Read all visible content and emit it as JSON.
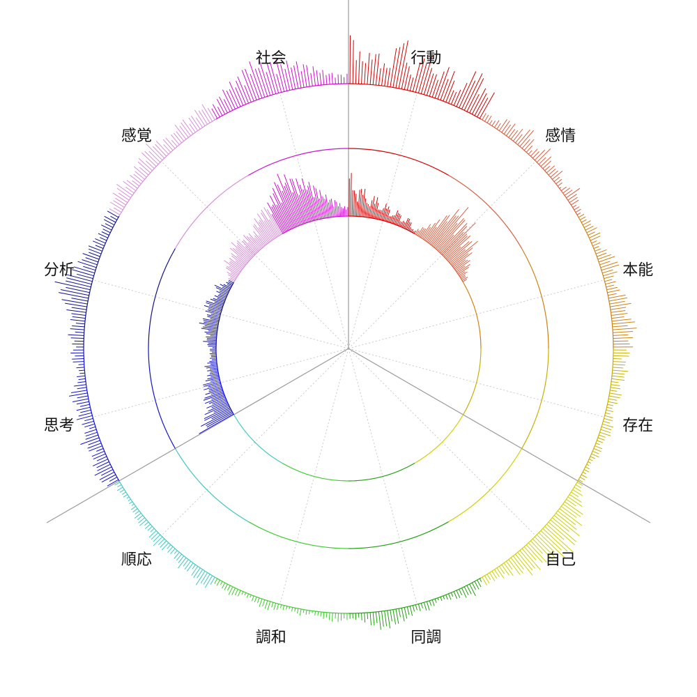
{
  "chart_data": {
    "type": "radial-bar",
    "title": "",
    "categories": [
      {
        "name": "行動",
        "color": "#d40000",
        "outer": [
          0.8,
          0.4,
          0.55,
          0.3,
          0.9,
          0.25,
          0.7,
          0.35,
          0.6,
          0.2,
          0.75,
          0.45
        ],
        "inner": [
          0.75,
          0.35,
          0.5,
          0.2,
          0.4,
          0.15,
          0.3,
          0.1,
          0.25,
          0.08,
          0.2,
          0.05
        ]
      },
      {
        "name": "感情",
        "color": "#d96040",
        "outer": [
          0.15,
          0.1,
          0.25,
          0.2,
          0.35,
          0.1,
          0.3,
          0.15,
          0.2,
          0.05,
          0.25,
          0.1
        ],
        "inner": [
          0.1,
          0.2,
          0.4,
          0.65,
          0.8,
          0.6,
          0.7,
          0.45,
          0.55,
          0.3,
          0.25,
          0.1
        ]
      },
      {
        "name": "本能",
        "color": "#d08010",
        "outer": [
          0.1,
          0.15,
          0.2,
          0.1,
          0.25,
          0.3,
          0.15,
          0.2,
          0.35,
          0.25,
          0.4,
          0.3
        ],
        "inner": [
          0,
          0,
          0,
          0,
          0,
          0,
          0,
          0,
          0,
          0,
          0,
          0
        ]
      },
      {
        "name": "存在",
        "color": "#c8b000",
        "outer": [
          0.3,
          0.2,
          0.25,
          0.15,
          0.2,
          0.1,
          0.15,
          0.2,
          0.1,
          0.15,
          0.05,
          0.1
        ],
        "inner": [
          0,
          0,
          0,
          0,
          0,
          0,
          0,
          0,
          0,
          0,
          0,
          0
        ]
      },
      {
        "name": "自己",
        "color": "#d0d000",
        "outer": [
          0.1,
          0.2,
          0.35,
          0.45,
          0.55,
          0.6,
          0.5,
          0.4,
          0.45,
          0.3,
          0.2,
          0.15
        ],
        "inner": [
          0,
          0,
          0,
          0,
          0,
          0,
          0,
          0,
          0,
          0,
          0,
          0
        ]
      },
      {
        "name": "同調",
        "color": "#22a010",
        "outer": [
          0.1,
          0.2,
          0.15,
          0.1,
          0.05,
          0.15,
          0.1,
          0.2,
          0.25,
          0.3,
          0.2,
          0.1
        ],
        "inner": [
          0,
          0,
          0,
          0,
          0,
          0,
          0,
          0,
          0,
          0,
          0,
          0
        ]
      },
      {
        "name": "調和",
        "color": "#3ccc2c",
        "outer": [
          0.1,
          0.15,
          0.1,
          0.05,
          0.1,
          0.05,
          0.1,
          0.15,
          0.1,
          0.05,
          0.15,
          0.1
        ],
        "inner": [
          0,
          0,
          0,
          0,
          0,
          0,
          0,
          0,
          0,
          0,
          0,
          0
        ]
      },
      {
        "name": "順応",
        "color": "#40c8c0",
        "outer": [
          0.2,
          0.25,
          0.15,
          0.2,
          0.1,
          0.15,
          0.2,
          0.1,
          0.15,
          0.1,
          0.05,
          0.1
        ],
        "inner": [
          0,
          0,
          0,
          0,
          0,
          0,
          0,
          0,
          0,
          0,
          0,
          0
        ]
      },
      {
        "name": "思考",
        "color": "#1010d0",
        "outer": [
          0.2,
          0.3,
          0.25,
          0.2,
          0.3,
          0.15,
          0.25,
          0.2,
          0.3,
          0.15,
          0.1,
          0.2
        ],
        "inner": [
          0.6,
          0.5,
          0.4,
          0.3,
          0.35,
          0.25,
          0.3,
          0.2,
          0.15,
          0.2,
          0.1,
          0.1
        ]
      },
      {
        "name": "分析",
        "color": "#101090",
        "outer": [
          0.15,
          0.25,
          0.2,
          0.3,
          0.45,
          0.55,
          0.4,
          0.3,
          0.25,
          0.2,
          0.15,
          0.2
        ],
        "inner": [
          0.1,
          0.2,
          0.15,
          0.25,
          0.3,
          0.2,
          0.25,
          0.3,
          0.2,
          0.15,
          0.25,
          0.1
        ]
      },
      {
        "name": "感覚",
        "color": "#d890d8",
        "outer": [
          0.2,
          0.25,
          0.3,
          0.2,
          0.25,
          0.3,
          0.35,
          0.25,
          0.2,
          0.3,
          0.25,
          0.3
        ],
        "inner": [
          0.1,
          0.2,
          0.3,
          0.25,
          0.35,
          0.4,
          0.3,
          0.35,
          0.25,
          0.4,
          0.45,
          0.5
        ]
      },
      {
        "name": "社会",
        "color": "#d010d0",
        "outer": [
          0.2,
          0.3,
          0.4,
          0.45,
          0.6,
          0.55,
          0.5,
          0.45,
          0.4,
          0.3,
          0.2,
          0.15
        ],
        "inner": [
          0.5,
          0.6,
          0.75,
          0.85,
          0.8,
          0.7,
          0.65,
          0.55,
          0.4,
          0.3,
          0.25,
          0.15
        ]
      }
    ]
  }
}
